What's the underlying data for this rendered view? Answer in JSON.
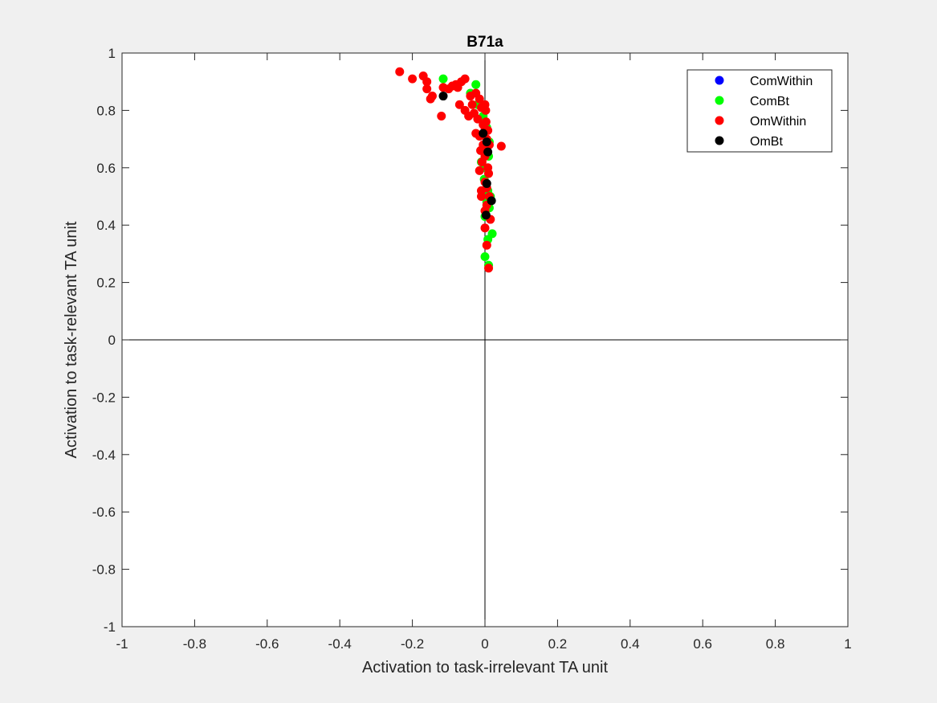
{
  "chart_data": {
    "type": "scatter",
    "title": "B71a",
    "xlabel": "Activation to task-irrelevant TA unit",
    "ylabel": "Activation to task-relevant TA unit",
    "xlim": [
      -1,
      1
    ],
    "ylim": [
      -1,
      1
    ],
    "xticks": [
      -1,
      -0.8,
      -0.6,
      -0.4,
      -0.2,
      0,
      0.2,
      0.4,
      0.6,
      0.8,
      1
    ],
    "yticks": [
      -1,
      -0.8,
      -0.6,
      -0.4,
      -0.2,
      0,
      0.2,
      0.4,
      0.6,
      0.8,
      1
    ],
    "xtick_labels": [
      "-1",
      "-0.8",
      "-0.6",
      "-0.4",
      "-0.2",
      "0",
      "0.2",
      "0.4",
      "0.6",
      "0.8",
      "1"
    ],
    "ytick_labels": [
      "-1",
      "-0.8",
      "-0.6",
      "-0.4",
      "-0.2",
      "0",
      "0.2",
      "0.4",
      "0.6",
      "0.8",
      "1"
    ],
    "grid": false,
    "zero_lines": true,
    "legend_position": "top-right",
    "series": [
      {
        "name": "ComWithin",
        "color": "#0000ff",
        "points": []
      },
      {
        "name": "ComBt",
        "color": "#00ff00",
        "points": [
          [
            -0.115,
            0.91
          ],
          [
            -0.025,
            0.89
          ],
          [
            -0.04,
            0.86
          ],
          [
            -0.02,
            0.82
          ],
          [
            -0.005,
            0.78
          ],
          [
            0.005,
            0.74
          ],
          [
            0.012,
            0.69
          ],
          [
            0.01,
            0.64
          ],
          [
            0.0,
            0.6
          ],
          [
            -0.002,
            0.56
          ],
          [
            0.008,
            0.52
          ],
          [
            0.005,
            0.48
          ],
          [
            0.012,
            0.46
          ],
          [
            0.0,
            0.43
          ],
          [
            0.02,
            0.37
          ],
          [
            0.008,
            0.35
          ],
          [
            0.0,
            0.29
          ],
          [
            0.01,
            0.26
          ],
          [
            0.015,
            0.5
          ],
          [
            -0.01,
            0.62
          ]
        ]
      },
      {
        "name": "OmWithin",
        "color": "#ff0000",
        "points": [
          [
            -0.235,
            0.935
          ],
          [
            -0.2,
            0.91
          ],
          [
            -0.17,
            0.92
          ],
          [
            -0.16,
            0.9
          ],
          [
            -0.16,
            0.875
          ],
          [
            -0.145,
            0.85
          ],
          [
            -0.15,
            0.84
          ],
          [
            -0.12,
            0.78
          ],
          [
            -0.115,
            0.88
          ],
          [
            -0.1,
            0.875
          ],
          [
            -0.09,
            0.885
          ],
          [
            -0.08,
            0.89
          ],
          [
            -0.075,
            0.88
          ],
          [
            -0.065,
            0.9
          ],
          [
            -0.055,
            0.91
          ],
          [
            -0.07,
            0.82
          ],
          [
            -0.055,
            0.8
          ],
          [
            -0.045,
            0.78
          ],
          [
            -0.04,
            0.85
          ],
          [
            -0.035,
            0.82
          ],
          [
            -0.03,
            0.79
          ],
          [
            -0.025,
            0.86
          ],
          [
            -0.015,
            0.84
          ],
          [
            -0.01,
            0.81
          ],
          [
            0.0,
            0.82
          ],
          [
            0.002,
            0.8
          ],
          [
            -0.02,
            0.77
          ],
          [
            -0.005,
            0.75
          ],
          [
            0.0,
            0.73
          ],
          [
            0.008,
            0.73
          ],
          [
            -0.025,
            0.72
          ],
          [
            -0.015,
            0.71
          ],
          [
            0.005,
            0.7
          ],
          [
            0.012,
            0.68
          ],
          [
            0.045,
            0.675
          ],
          [
            -0.012,
            0.66
          ],
          [
            0.0,
            0.64
          ],
          [
            -0.008,
            0.62
          ],
          [
            0.008,
            0.6
          ],
          [
            -0.015,
            0.59
          ],
          [
            0.01,
            0.58
          ],
          [
            0.0,
            0.55
          ],
          [
            0.005,
            0.53
          ],
          [
            -0.01,
            0.52
          ],
          [
            0.012,
            0.5
          ],
          [
            -0.01,
            0.5
          ],
          [
            0.005,
            0.47
          ],
          [
            0.0,
            0.45
          ],
          [
            0.015,
            0.42
          ],
          [
            0.0,
            0.39
          ],
          [
            0.005,
            0.33
          ],
          [
            0.01,
            0.25
          ],
          [
            -0.005,
            0.68
          ],
          [
            0.003,
            0.76
          ]
        ]
      },
      {
        "name": "OmBt",
        "color": "#000000",
        "points": [
          [
            -0.115,
            0.85
          ],
          [
            -0.005,
            0.72
          ],
          [
            0.005,
            0.69
          ],
          [
            0.008,
            0.655
          ],
          [
            0.005,
            0.545
          ],
          [
            0.018,
            0.485
          ],
          [
            0.003,
            0.435
          ]
        ]
      }
    ]
  }
}
